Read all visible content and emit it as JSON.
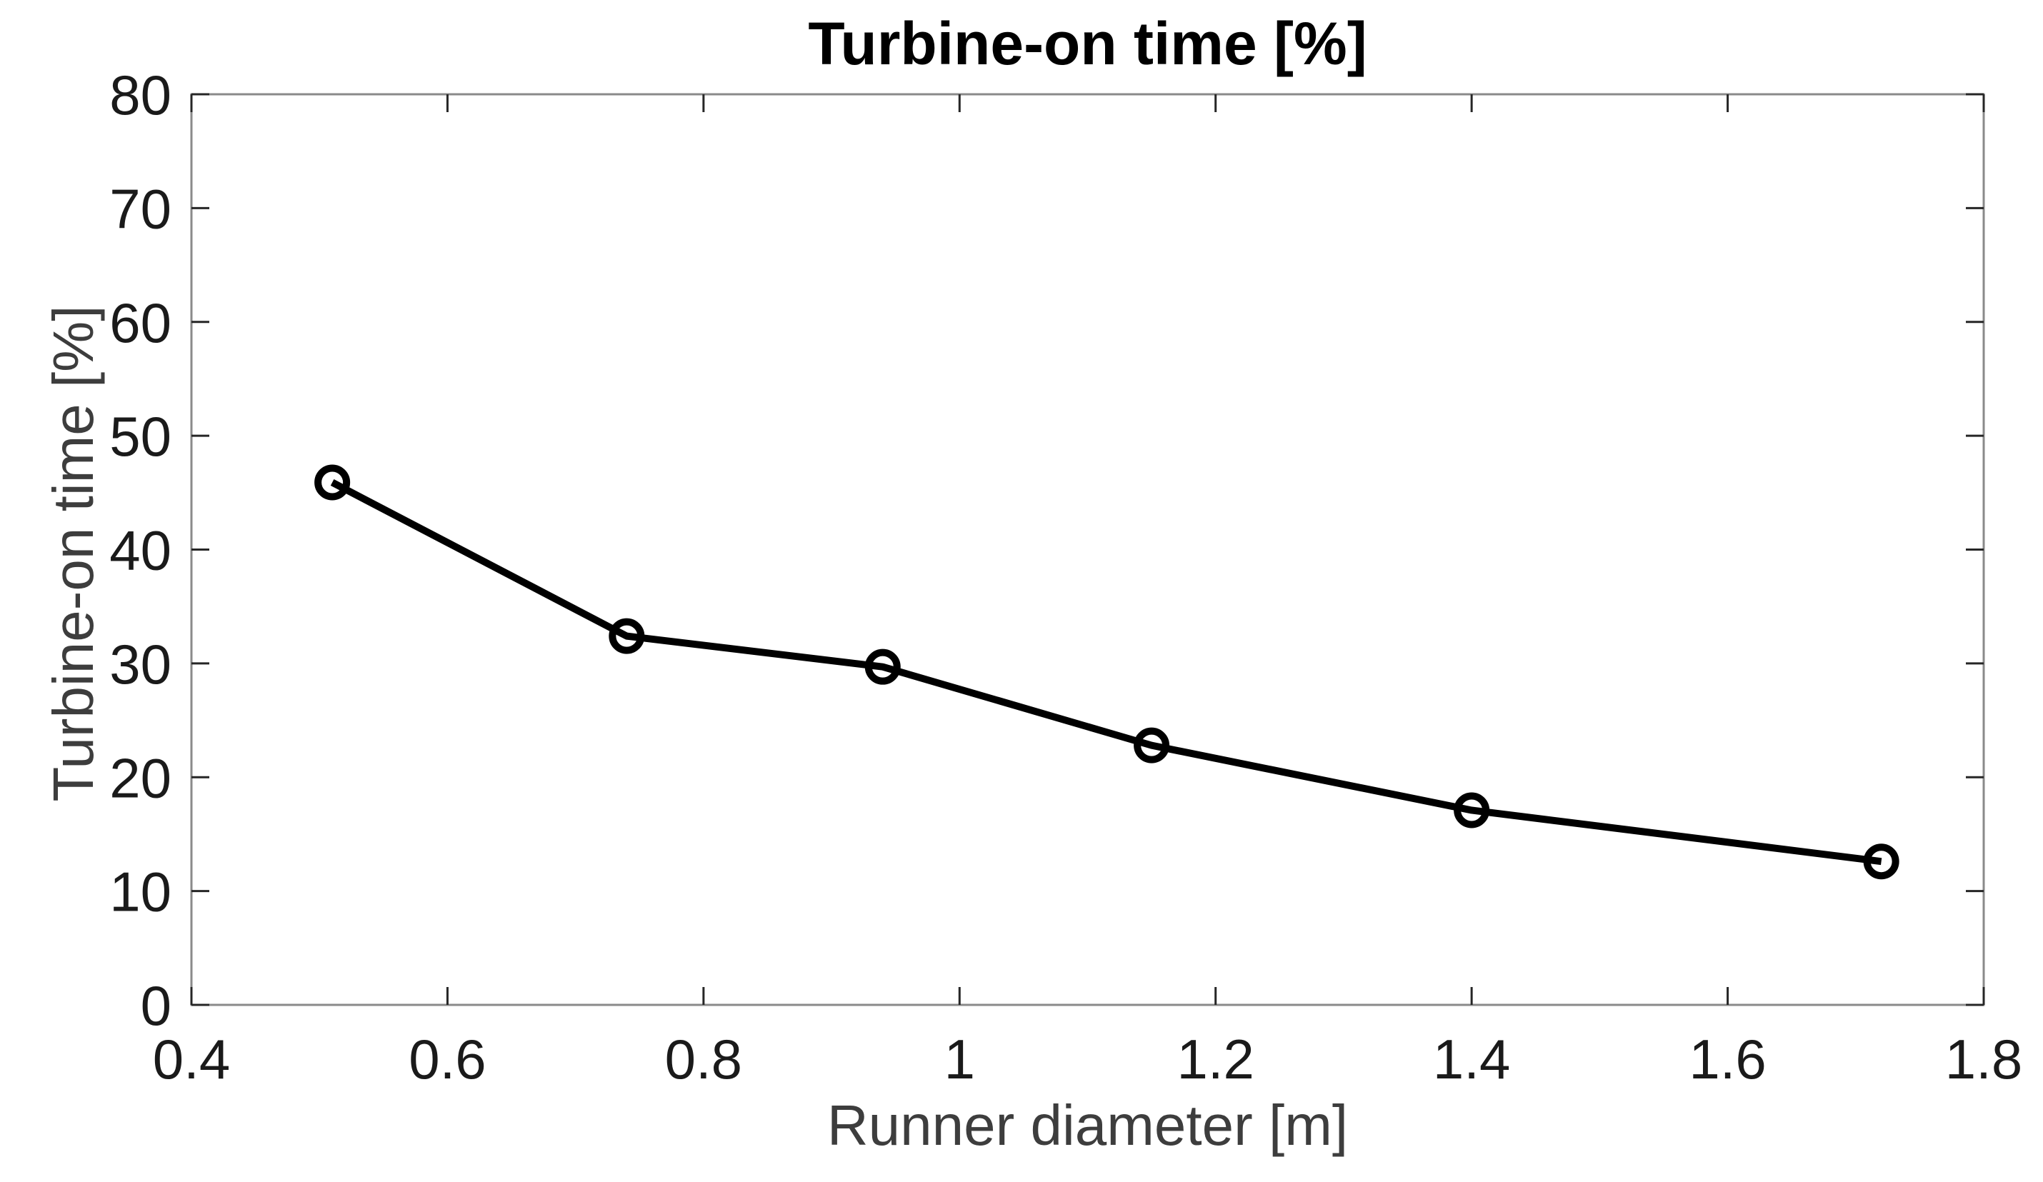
{
  "window": {
    "background": "#ffffff"
  },
  "chart_data": {
    "type": "line",
    "title": "Turbine-on time [%]",
    "xlabel": "Runner diameter [m]",
    "ylabel": "Turbine-on time [%]",
    "series": [
      {
        "name": "Turbine-on time",
        "x": [
          0.51,
          0.74,
          0.94,
          1.15,
          1.4,
          1.72
        ],
        "y": [
          45.9,
          32.4,
          29.7,
          22.8,
          17.1,
          12.6
        ]
      }
    ],
    "xlim": [
      0.4,
      1.8
    ],
    "ylim": [
      0,
      80
    ],
    "xticks": {
      "values": [
        0.4,
        0.6,
        0.8,
        1,
        1.2,
        1.4,
        1.6,
        1.8
      ],
      "labels": [
        "0.4",
        "0.6",
        "0.8",
        "1",
        "1.2",
        "1.4",
        "1.6",
        "1.8"
      ]
    },
    "yticks": {
      "values": [
        0,
        10,
        20,
        30,
        40,
        50,
        60,
        70,
        80
      ],
      "labels": [
        "0",
        "10",
        "20",
        "30",
        "40",
        "50",
        "60",
        "70",
        "80"
      ]
    },
    "grid": false,
    "legend": null,
    "marker": "open-circle",
    "box": true,
    "tick_direction": "in",
    "colors": {
      "line": "#000000",
      "marker": "#000000",
      "axis_box": "#8a8a8a",
      "tick": "#262626",
      "tick_label": "#1a1a1a",
      "axis_label": "#3d3d3d",
      "title": "#000000"
    }
  }
}
